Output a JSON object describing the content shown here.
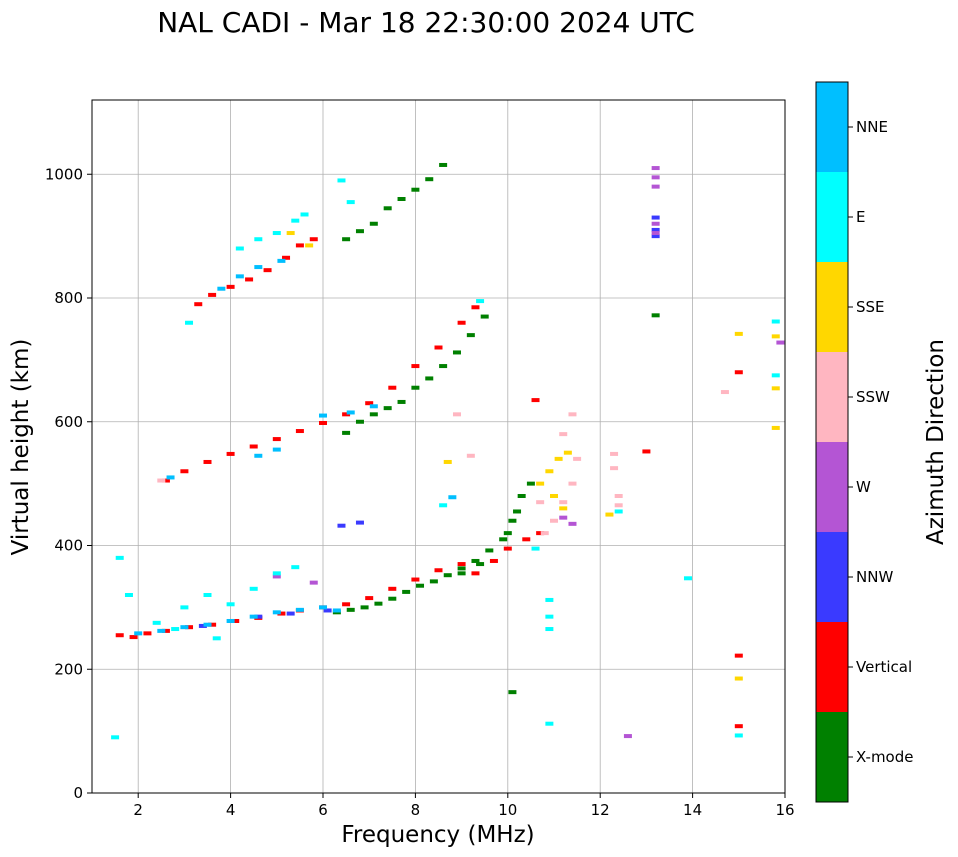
{
  "chart_data": {
    "type": "scatter",
    "title": "NAL CADI - Mar 18 22:30:00 2024 UTC",
    "xlabel": "Frequency (MHz)",
    "ylabel": "Virtual height (km)",
    "xlim": [
      1,
      16
    ],
    "ylim": [
      0,
      1120
    ],
    "xticks": [
      2,
      4,
      6,
      8,
      10,
      12,
      14,
      16
    ],
    "yticks": [
      0,
      200,
      400,
      600,
      800,
      1000
    ],
    "grid": true,
    "colorbar": {
      "label": "Azimuth Direction",
      "placement": "right",
      "categories": [
        {
          "name": "X-mode",
          "color": "#008000"
        },
        {
          "name": "Vertical",
          "color": "#ff0000"
        },
        {
          "name": "NNW",
          "color": "#3a3aff"
        },
        {
          "name": "W",
          "color": "#b455d4"
        },
        {
          "name": "SSW",
          "color": "#ffb6c1"
        },
        {
          "name": "SSE",
          "color": "#ffd700"
        },
        {
          "name": "E",
          "color": "#00ffff"
        },
        {
          "name": "NNE",
          "color": "#00bfff"
        }
      ]
    },
    "series": [
      {
        "name": "X-mode",
        "points": [
          [
            6.3,
            292
          ],
          [
            6.6,
            296
          ],
          [
            6.9,
            300
          ],
          [
            7.2,
            306
          ],
          [
            7.5,
            314
          ],
          [
            7.8,
            325
          ],
          [
            8.1,
            335
          ],
          [
            8.4,
            342
          ],
          [
            8.7,
            352
          ],
          [
            9.0,
            363
          ],
          [
            9.3,
            375
          ],
          [
            9.6,
            392
          ],
          [
            9.9,
            410
          ],
          [
            10.1,
            440
          ],
          [
            10.3,
            480
          ],
          [
            10.5,
            500
          ],
          [
            10.2,
            455
          ],
          [
            10.0,
            420
          ],
          [
            9.4,
            370
          ],
          [
            9.0,
            355
          ],
          [
            6.5,
            582
          ],
          [
            6.8,
            600
          ],
          [
            7.1,
            612
          ],
          [
            7.4,
            622
          ],
          [
            7.7,
            632
          ],
          [
            8.0,
            655
          ],
          [
            8.3,
            670
          ],
          [
            8.6,
            690
          ],
          [
            8.9,
            712
          ],
          [
            9.2,
            740
          ],
          [
            9.5,
            770
          ],
          [
            6.5,
            895
          ],
          [
            6.8,
            908
          ],
          [
            7.1,
            920
          ],
          [
            7.4,
            945
          ],
          [
            7.7,
            960
          ],
          [
            8.0,
            975
          ],
          [
            8.3,
            992
          ],
          [
            8.6,
            1015
          ],
          [
            13.2,
            772
          ],
          [
            10.1,
            163
          ]
        ]
      },
      {
        "name": "Vertical",
        "points": [
          [
            1.6,
            255
          ],
          [
            1.9,
            252
          ],
          [
            2.2,
            258
          ],
          [
            2.6,
            262
          ],
          [
            3.1,
            268
          ],
          [
            3.6,
            272
          ],
          [
            4.1,
            278
          ],
          [
            4.6,
            283
          ],
          [
            5.1,
            290
          ],
          [
            5.5,
            295
          ],
          [
            6.0,
            300
          ],
          [
            6.5,
            305
          ],
          [
            7.0,
            315
          ],
          [
            7.5,
            330
          ],
          [
            8.0,
            345
          ],
          [
            8.5,
            360
          ],
          [
            9.0,
            370
          ],
          [
            9.3,
            355
          ],
          [
            9.7,
            375
          ],
          [
            10.0,
            395
          ],
          [
            10.4,
            410
          ],
          [
            10.7,
            420
          ],
          [
            2.6,
            505
          ],
          [
            3.0,
            520
          ],
          [
            3.5,
            535
          ],
          [
            4.0,
            548
          ],
          [
            4.5,
            560
          ],
          [
            5.0,
            572
          ],
          [
            5.5,
            585
          ],
          [
            6.0,
            598
          ],
          [
            6.5,
            612
          ],
          [
            7.0,
            630
          ],
          [
            7.5,
            655
          ],
          [
            8.0,
            690
          ],
          [
            8.5,
            720
          ],
          [
            9.0,
            760
          ],
          [
            9.3,
            785
          ],
          [
            3.3,
            790
          ],
          [
            3.6,
            805
          ],
          [
            4.0,
            818
          ],
          [
            4.4,
            830
          ],
          [
            4.8,
            845
          ],
          [
            5.2,
            865
          ],
          [
            5.5,
            885
          ],
          [
            5.8,
            895
          ],
          [
            13.0,
            552
          ],
          [
            15.0,
            680
          ],
          [
            15.0,
            222
          ],
          [
            15.0,
            108
          ],
          [
            10.6,
            635
          ]
        ]
      },
      {
        "name": "NNW",
        "points": [
          [
            6.4,
            432
          ],
          [
            6.8,
            437
          ],
          [
            13.2,
            930
          ],
          [
            13.2,
            910
          ],
          [
            13.2,
            900
          ],
          [
            4.6,
            285
          ],
          [
            5.3,
            290
          ],
          [
            6.1,
            295
          ],
          [
            3.4,
            270
          ]
        ]
      },
      {
        "name": "W",
        "points": [
          [
            13.2,
            1010
          ],
          [
            13.2,
            995
          ],
          [
            13.2,
            980
          ],
          [
            13.2,
            920
          ],
          [
            13.2,
            905
          ],
          [
            12.6,
            92
          ],
          [
            15.9,
            728
          ],
          [
            11.2,
            445
          ],
          [
            11.4,
            435
          ],
          [
            5.0,
            350
          ],
          [
            5.8,
            340
          ]
        ]
      },
      {
        "name": "SSW",
        "points": [
          [
            10.8,
            420
          ],
          [
            11.0,
            440
          ],
          [
            11.2,
            470
          ],
          [
            11.4,
            500
          ],
          [
            11.5,
            540
          ],
          [
            11.2,
            580
          ],
          [
            11.4,
            612
          ],
          [
            12.3,
            548
          ],
          [
            12.3,
            525
          ],
          [
            12.4,
            480
          ],
          [
            12.4,
            465
          ],
          [
            14.7,
            648
          ],
          [
            8.9,
            612
          ],
          [
            9.2,
            545
          ],
          [
            10.7,
            470
          ],
          [
            2.5,
            505
          ]
        ]
      },
      {
        "name": "SSE",
        "points": [
          [
            10.7,
            500
          ],
          [
            10.9,
            520
          ],
          [
            11.1,
            540
          ],
          [
            11.3,
            550
          ],
          [
            11.0,
            480
          ],
          [
            11.2,
            460
          ],
          [
            12.2,
            450
          ],
          [
            8.7,
            535
          ],
          [
            15.0,
            742
          ],
          [
            15.0,
            185
          ],
          [
            15.8,
            738
          ],
          [
            15.8,
            654
          ],
          [
            15.8,
            590
          ],
          [
            5.3,
            905
          ],
          [
            5.7,
            885
          ]
        ]
      },
      {
        "name": "E",
        "points": [
          [
            1.6,
            380
          ],
          [
            1.8,
            320
          ],
          [
            2.4,
            275
          ],
          [
            3.0,
            300
          ],
          [
            3.5,
            320
          ],
          [
            4.0,
            305
          ],
          [
            4.5,
            330
          ],
          [
            5.0,
            355
          ],
          [
            5.4,
            365
          ],
          [
            3.7,
            250
          ],
          [
            2.8,
            265
          ],
          [
            4.2,
            880
          ],
          [
            4.6,
            895
          ],
          [
            5.0,
            905
          ],
          [
            5.4,
            925
          ],
          [
            5.6,
            935
          ],
          [
            6.6,
            955
          ],
          [
            6.4,
            990
          ],
          [
            3.1,
            760
          ],
          [
            9.4,
            795
          ],
          [
            10.6,
            395
          ],
          [
            10.9,
            312
          ],
          [
            10.9,
            285
          ],
          [
            10.9,
            265
          ],
          [
            10.9,
            112
          ],
          [
            13.9,
            347
          ],
          [
            15.0,
            93
          ],
          [
            15.8,
            762
          ],
          [
            15.8,
            675
          ],
          [
            12.4,
            455
          ],
          [
            8.6,
            465
          ],
          [
            1.5,
            90
          ]
        ]
      },
      {
        "name": "NNE",
        "points": [
          [
            2.0,
            258
          ],
          [
            2.5,
            262
          ],
          [
            3.0,
            268
          ],
          [
            3.5,
            272
          ],
          [
            4.0,
            278
          ],
          [
            4.5,
            285
          ],
          [
            5.0,
            292
          ],
          [
            5.5,
            296
          ],
          [
            6.0,
            300
          ],
          [
            6.3,
            295
          ],
          [
            3.8,
            815
          ],
          [
            4.2,
            835
          ],
          [
            4.6,
            850
          ],
          [
            5.1,
            860
          ],
          [
            6.0,
            610
          ],
          [
            6.6,
            615
          ],
          [
            7.1,
            625
          ],
          [
            5.0,
            555
          ],
          [
            4.6,
            545
          ],
          [
            8.8,
            478
          ],
          [
            2.7,
            510
          ]
        ]
      }
    ]
  }
}
